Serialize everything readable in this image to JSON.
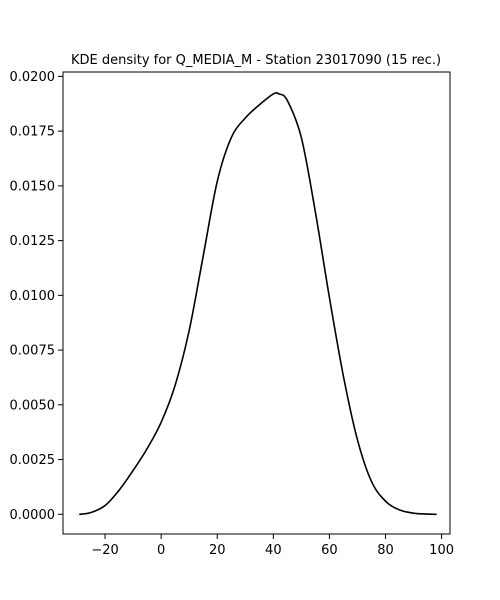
{
  "chart_data": {
    "type": "line",
    "title": "KDE density for Q_MEDIA_M - Station 23017090 (15 rec.)",
    "xlabel": "",
    "ylabel": "",
    "xlim": [
      -35,
      103
    ],
    "ylim": [
      -0.0009,
      0.0202
    ],
    "x_ticks": [
      -20,
      0,
      20,
      40,
      60,
      80,
      100
    ],
    "y_ticks": [
      0.0,
      0.0025,
      0.005,
      0.0075,
      0.01,
      0.0125,
      0.015,
      0.0175,
      0.02
    ],
    "x_tick_labels": [
      "−20",
      "0",
      "20",
      "40",
      "60",
      "80",
      "100"
    ],
    "y_tick_labels": [
      "0.0000",
      "0.0025",
      "0.0050",
      "0.0075",
      "0.0100",
      "0.0125",
      "0.0150",
      "0.0175",
      "0.0200"
    ],
    "grid": false,
    "series": [
      {
        "color": "#000000",
        "x": [
          -29,
          -25,
          -20,
          -15,
          -10,
          -5,
          0,
          5,
          10,
          15,
          20,
          25,
          30,
          35,
          40,
          42,
          45,
          50,
          55,
          60,
          65,
          70,
          75,
          80,
          85,
          90,
          95,
          98
        ],
        "y": [
          0.0,
          8e-05,
          0.0004,
          0.0011,
          0.002,
          0.003,
          0.0042,
          0.0059,
          0.0084,
          0.0118,
          0.0152,
          0.0172,
          0.0181,
          0.0187,
          0.0192,
          0.0192,
          0.0189,
          0.0172,
          0.0138,
          0.0099,
          0.0063,
          0.0034,
          0.0015,
          0.0006,
          0.0002,
          5e-05,
          1e-05,
          0.0
        ]
      }
    ]
  }
}
